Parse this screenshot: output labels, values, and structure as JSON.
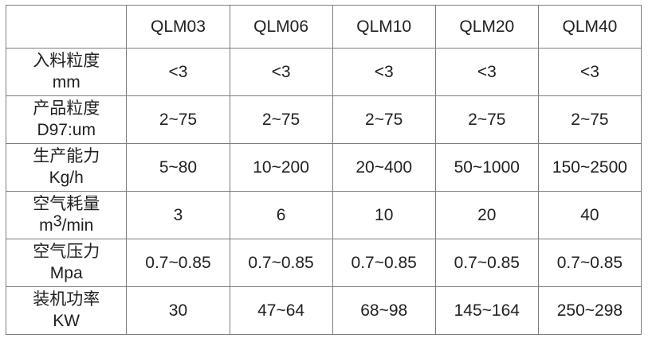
{
  "table": {
    "columns": [
      "",
      "QLM03",
      "QLM06",
      "QLM10",
      "QLM20",
      "QLM40"
    ],
    "rows": [
      {
        "label_line1": "入料粒度",
        "label_line2": "mm",
        "values": [
          "<3",
          "<3",
          "<3",
          "<3",
          "<3"
        ]
      },
      {
        "label_line1": "产品粒度",
        "label_line2": "D97:um",
        "values": [
          "2~75",
          "2~75",
          "2~75",
          "2~75",
          "2~75"
        ]
      },
      {
        "label_line1": "生产能力",
        "label_line2": "Kg/h",
        "values": [
          "5~80",
          "10~200",
          "20~400",
          "50~1000",
          "150~2500"
        ]
      },
      {
        "label_line1": "空气耗量",
        "unit_prefix": "m",
        "unit_sup": "3",
        "unit_suffix": "/min",
        "values": [
          "3",
          "6",
          "10",
          "20",
          "40"
        ]
      },
      {
        "label_line1": "空气压力",
        "label_line2": "Mpa",
        "values": [
          "0.7~0.85",
          "0.7~0.85",
          "0.7~0.85",
          "0.7~0.85",
          "0.7~0.85"
        ]
      },
      {
        "label_line1": "装机功率",
        "label_line2": "KW",
        "values": [
          "30",
          "47~64",
          "68~98",
          "145~164",
          "250~298"
        ]
      }
    ],
    "colors": {
      "border": "#7d7d7d",
      "text": "#212121",
      "background": "#ffffff"
    }
  }
}
